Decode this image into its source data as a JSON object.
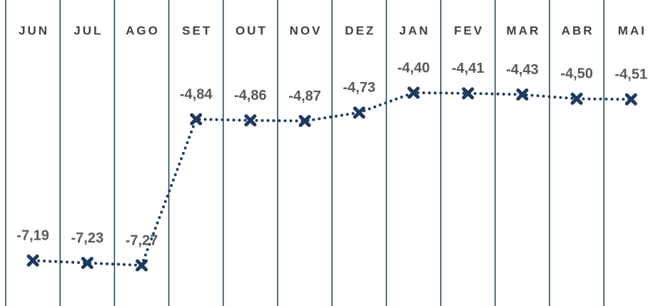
{
  "chart_data": {
    "type": "line",
    "categories": [
      "JUN",
      "JUL",
      "AGO",
      "SET",
      "OUT",
      "NOV",
      "DEZ",
      "JAN",
      "FEV",
      "MAR",
      "ABR",
      "MAI"
    ],
    "values": [
      -7.19,
      -7.23,
      -7.27,
      -4.84,
      -4.86,
      -4.87,
      -4.73,
      -4.4,
      -4.41,
      -4.43,
      -4.5,
      -4.51
    ],
    "value_labels": [
      "-7,19",
      "-7,23",
      "-7,27",
      "-4,84",
      "-4,86",
      "-4,87",
      "-4,73",
      "-4,40",
      "-4,41",
      "-4,43",
      "-4,50",
      "-4,51"
    ],
    "color": "#1f3a5f"
  }
}
